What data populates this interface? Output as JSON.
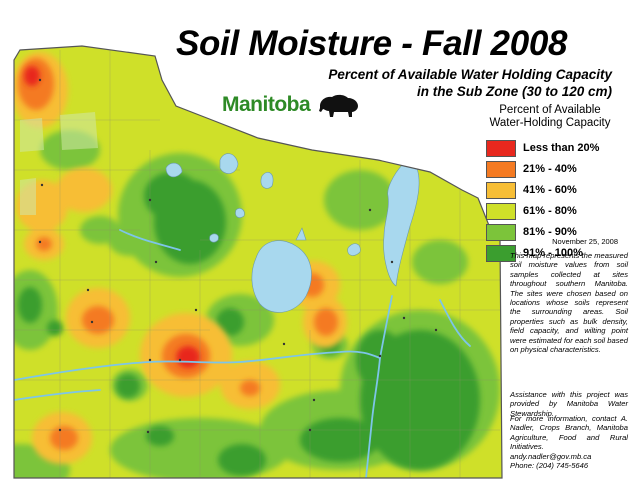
{
  "title": "Soil Moisture - Fall 2008",
  "subtitle_line1": "Percent of Available Water Holding Capacity",
  "subtitle_line2": "in the Sub Zone (30 to 120 cm)",
  "logo_text": "Manitoba",
  "legend": {
    "title_line1": "Percent of Available",
    "title_line2": "Water-Holding Capacity",
    "items": [
      {
        "label": "Less than 20%",
        "color": "#e8281e"
      },
      {
        "label": "21% - 40%",
        "color": "#f47a22"
      },
      {
        "label": "41% - 60%",
        "color": "#f7be36"
      },
      {
        "label": "61% - 80%",
        "color": "#cfe029"
      },
      {
        "label": "81% - 90%",
        "color": "#7cc43a"
      },
      {
        "label": "91% - 100%",
        "color": "#3b9e2f"
      }
    ]
  },
  "date": "November 25, 2008",
  "note_description": "This map represents the measured soil moisture values from soil samples collected at sites throughout southern Manitoba. The sites were chosen based on locations whose soils represent the surrounding areas. Soil properties such as bulk density, field capacity, and wilting point were estimated for each soil based on physical characteristics.",
  "note_assistance": "Assistance with this project was provided by Manitoba Water Stewardship.",
  "contact": {
    "intro": "For more information, contact A. Nadler, Crops Branch, Manitoba Agriculture, Food and Rural Initiatives.",
    "email": "andy.nadler@gov.mb.ca",
    "phone": "Phone: (204) 745-5646"
  },
  "colors": {
    "lake": "#a8d8ee",
    "river": "#7dc5e8",
    "border": "#555555"
  }
}
